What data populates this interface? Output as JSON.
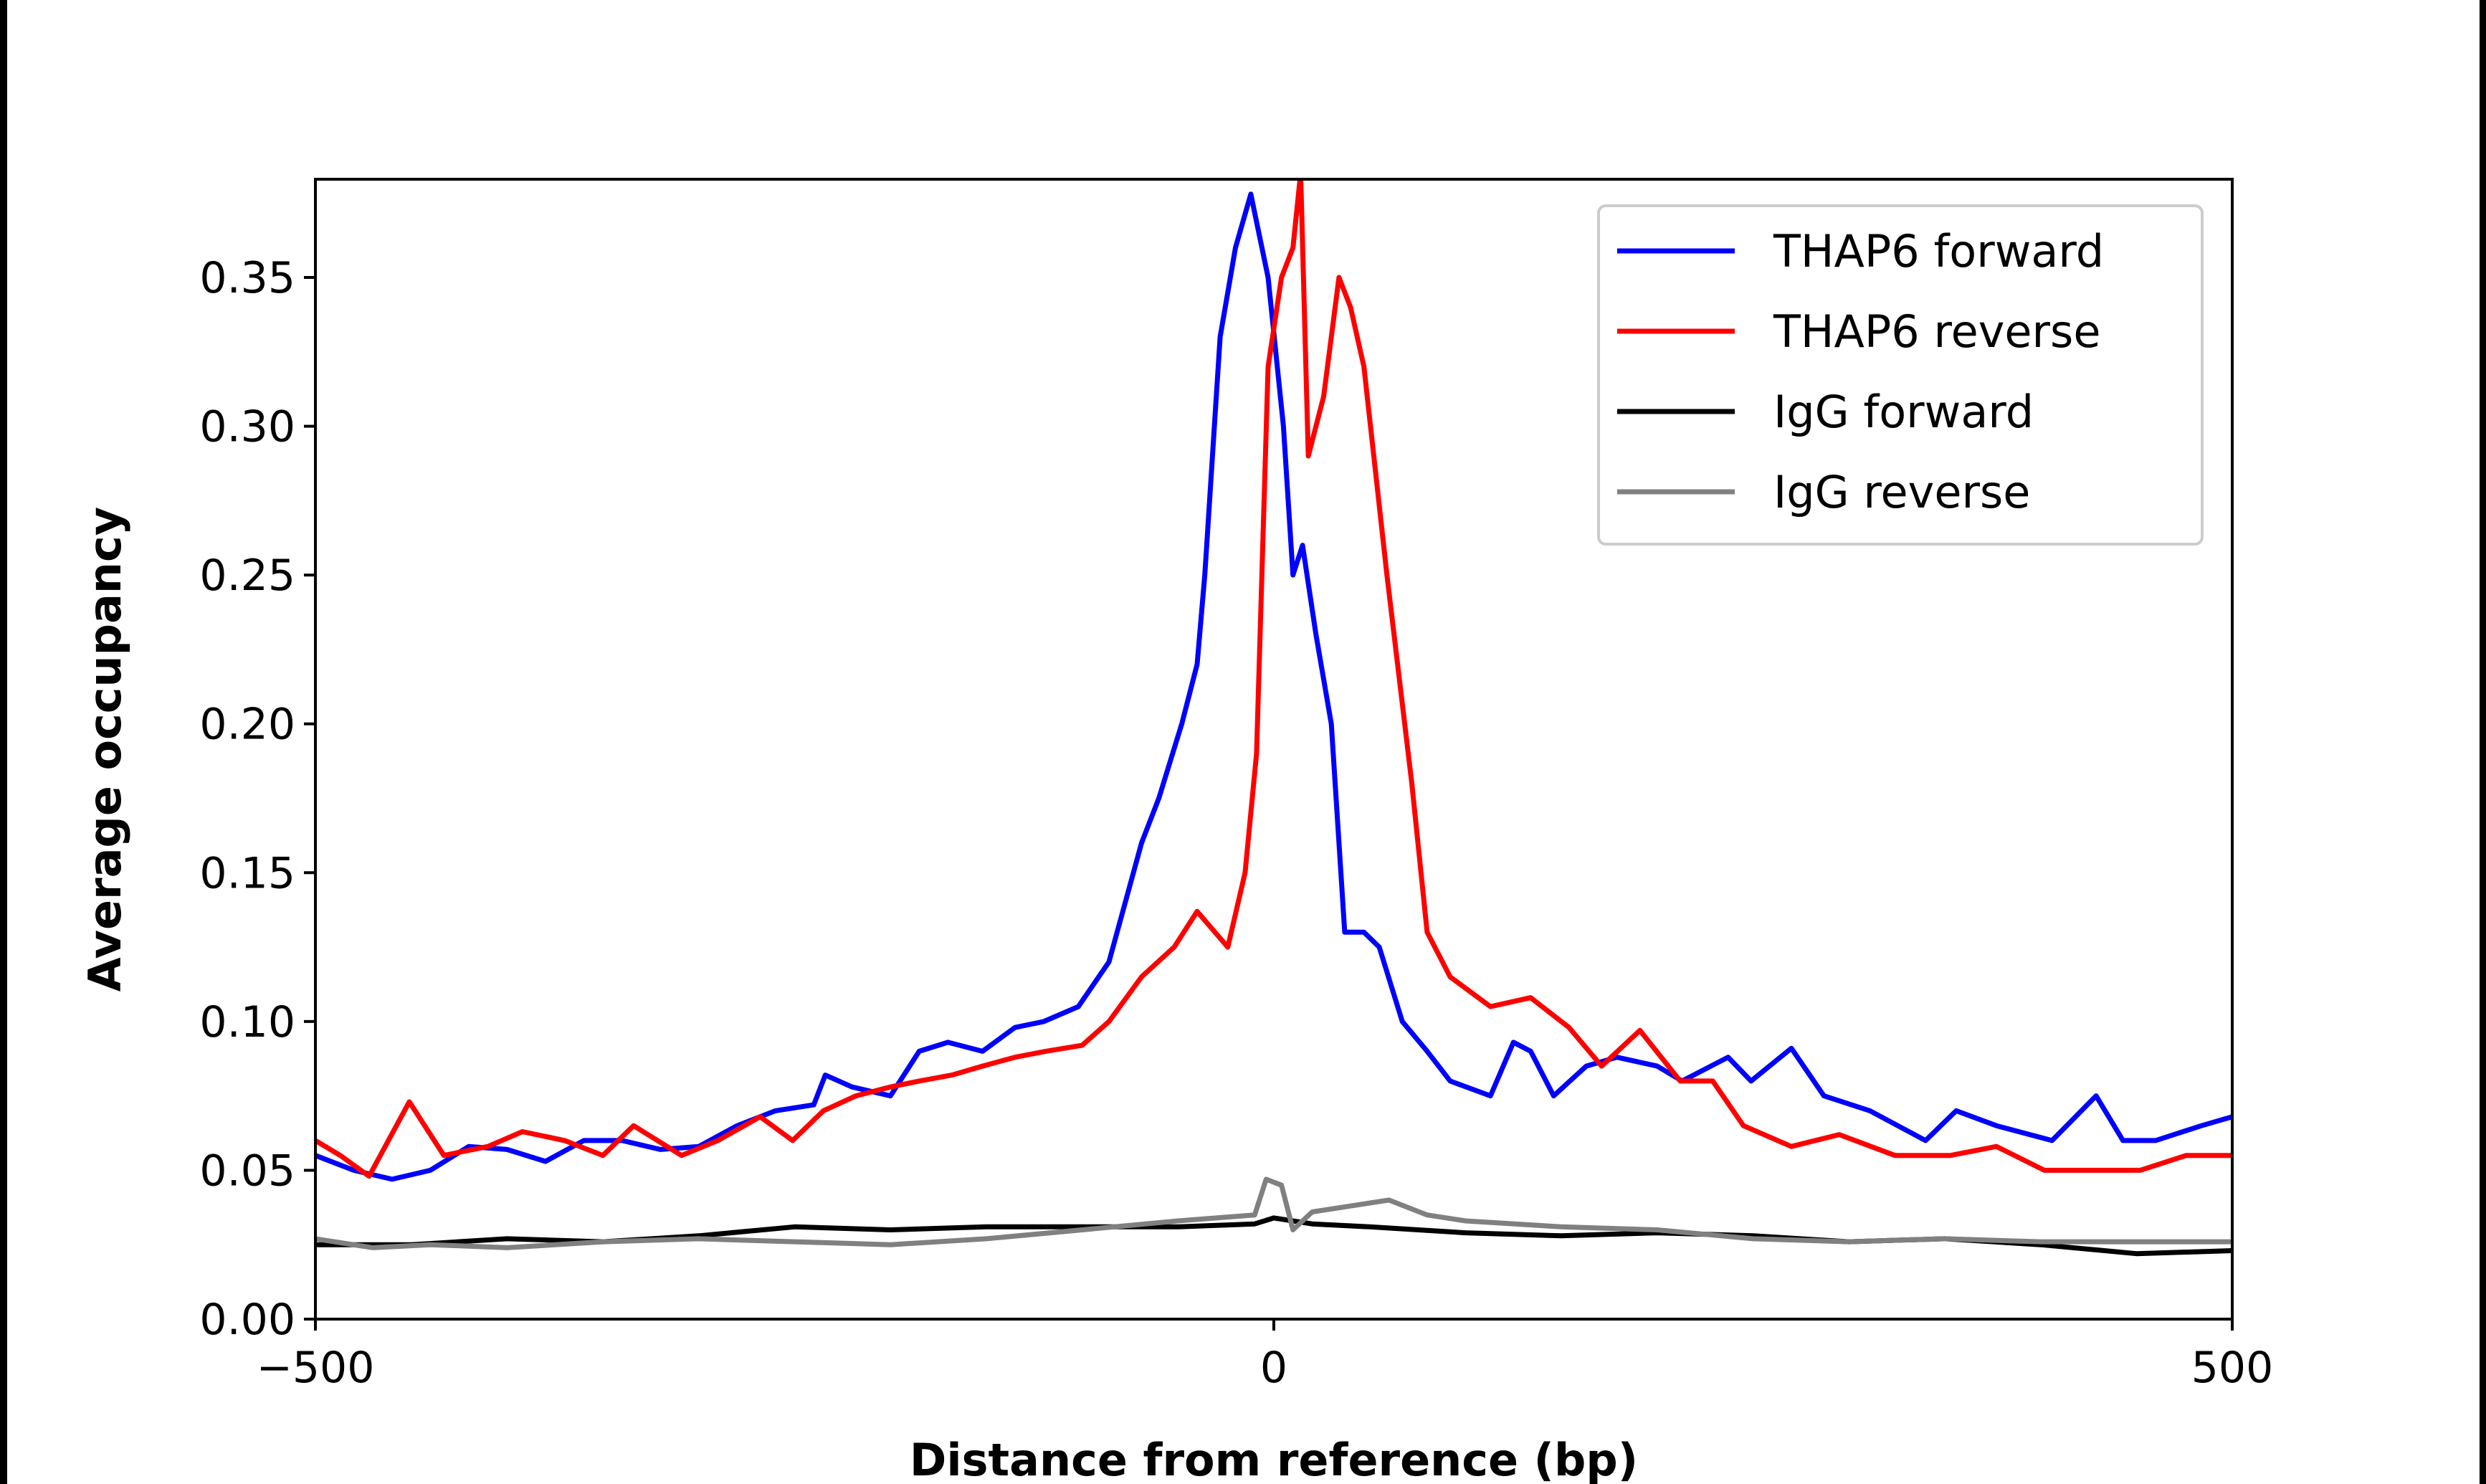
{
  "chart_data": {
    "type": "line",
    "xlabel": "Distance from reference (bp)",
    "ylabel": "Average occupancy",
    "xlim": [
      -500,
      500
    ],
    "ylim": [
      0,
      0.383
    ],
    "xticks": [
      -500,
      0,
      500
    ],
    "xtick_labels": [
      "−500",
      "0",
      "500"
    ],
    "yticks": [
      0,
      0.05,
      0.1,
      0.15,
      0.2,
      0.25,
      0.3,
      0.35
    ],
    "ytick_labels": [
      "0.00",
      "0.05",
      "0.10",
      "0.15",
      "0.20",
      "0.25",
      "0.30",
      "0.35"
    ],
    "grid": false,
    "legend_position": "top-right",
    "series": [
      {
        "name": "THAP6 forward",
        "color": "#0000ff",
        "x": [
          -500,
          -480,
          -460,
          -440,
          -420,
          -400,
          -380,
          -360,
          -340,
          -320,
          -300,
          -280,
          -260,
          -240,
          -234,
          -220,
          -200,
          -185,
          -170,
          -152,
          -135,
          -120,
          -102,
          -86,
          -69,
          -60,
          -48,
          -40,
          -36,
          -28,
          -20,
          -12,
          -3,
          5,
          10,
          15,
          22,
          30,
          37,
          47,
          55,
          67,
          80,
          92,
          113,
          125,
          134,
          146,
          163,
          179,
          200,
          213,
          237,
          249,
          270,
          287,
          311,
          340,
          356,
          377,
          406,
          429,
          443,
          460,
          484,
          500
        ],
        "y": [
          0.055,
          0.05,
          0.047,
          0.05,
          0.058,
          0.057,
          0.053,
          0.06,
          0.06,
          0.057,
          0.058,
          0.065,
          0.07,
          0.072,
          0.082,
          0.078,
          0.075,
          0.09,
          0.093,
          0.09,
          0.098,
          0.1,
          0.105,
          0.12,
          0.16,
          0.175,
          0.2,
          0.22,
          0.25,
          0.33,
          0.36,
          0.378,
          0.35,
          0.3,
          0.25,
          0.26,
          0.23,
          0.2,
          0.13,
          0.13,
          0.125,
          0.1,
          0.09,
          0.08,
          0.075,
          0.093,
          0.09,
          0.075,
          0.085,
          0.088,
          0.085,
          0.08,
          0.088,
          0.08,
          0.091,
          0.075,
          0.07,
          0.06,
          0.07,
          0.065,
          0.06,
          0.075,
          0.06,
          0.06,
          0.065,
          0.068
        ]
      },
      {
        "name": "THAP6 reverse",
        "color": "#ff0000",
        "x": [
          -500,
          -487,
          -472,
          -451,
          -433,
          -410,
          -392,
          -370,
          -350,
          -334,
          -309,
          -290,
          -268,
          -251,
          -235,
          -218,
          -200,
          -185,
          -168,
          -152,
          -135,
          -119,
          -100,
          -86,
          -69,
          -52,
          -40,
          -24,
          -15,
          -9,
          -3,
          4,
          10,
          14,
          18,
          22,
          26,
          34,
          40,
          47,
          59,
          72,
          80,
          92,
          113,
          134,
          154,
          171,
          191,
          212,
          229,
          245,
          270,
          295,
          324,
          353,
          377,
          402,
          427,
          452,
          476,
          500
        ],
        "y": [
          0.06,
          0.055,
          0.048,
          0.073,
          0.055,
          0.058,
          0.063,
          0.06,
          0.055,
          0.065,
          0.055,
          0.06,
          0.068,
          0.06,
          0.07,
          0.075,
          0.078,
          0.08,
          0.082,
          0.085,
          0.088,
          0.09,
          0.092,
          0.1,
          0.115,
          0.125,
          0.137,
          0.125,
          0.15,
          0.19,
          0.32,
          0.35,
          0.36,
          0.385,
          0.29,
          0.3,
          0.31,
          0.35,
          0.34,
          0.32,
          0.25,
          0.18,
          0.13,
          0.115,
          0.105,
          0.108,
          0.098,
          0.085,
          0.097,
          0.08,
          0.08,
          0.065,
          0.058,
          0.062,
          0.055,
          0.055,
          0.058,
          0.05,
          0.05,
          0.05,
          0.055,
          0.055
        ]
      },
      {
        "name": "IgG forward",
        "color": "#000000",
        "x": [
          -500,
          -450,
          -400,
          -350,
          -300,
          -250,
          -200,
          -150,
          -100,
          -50,
          -10,
          0,
          20,
          50,
          100,
          150,
          200,
          250,
          300,
          350,
          400,
          450,
          500
        ],
        "y": [
          0.025,
          0.025,
          0.027,
          0.026,
          0.028,
          0.031,
          0.03,
          0.031,
          0.031,
          0.031,
          0.032,
          0.034,
          0.032,
          0.031,
          0.029,
          0.028,
          0.029,
          0.028,
          0.026,
          0.027,
          0.025,
          0.022,
          0.023
        ]
      },
      {
        "name": "IgG reverse",
        "color": "#808080",
        "x": [
          -500,
          -470,
          -440,
          -400,
          -350,
          -300,
          -250,
          -200,
          -150,
          -100,
          -50,
          -10,
          -4,
          4,
          10,
          20,
          40,
          60,
          80,
          100,
          150,
          200,
          250,
          300,
          350,
          400,
          450,
          500
        ],
        "y": [
          0.027,
          0.024,
          0.025,
          0.024,
          0.026,
          0.027,
          0.026,
          0.025,
          0.027,
          0.03,
          0.033,
          0.035,
          0.047,
          0.045,
          0.03,
          0.036,
          0.038,
          0.04,
          0.035,
          0.033,
          0.031,
          0.03,
          0.027,
          0.026,
          0.027,
          0.026,
          0.026,
          0.026
        ]
      }
    ]
  }
}
